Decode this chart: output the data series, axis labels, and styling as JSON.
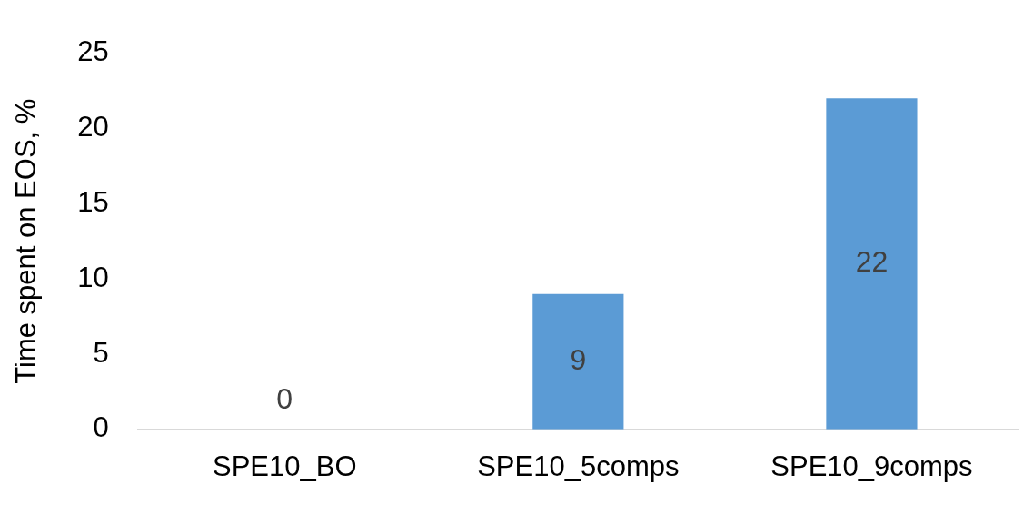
{
  "chart_data": {
    "type": "bar",
    "ylabel": "Time spent on EOS, %",
    "categories": [
      "SPE10_BO",
      "SPE10_5comps",
      "SPE10_9comps"
    ],
    "values": [
      0,
      9,
      22
    ],
    "color": "#5b9bd5",
    "ylim": [
      0,
      25
    ],
    "yticks": [
      0,
      5,
      10,
      15,
      20,
      25
    ],
    "grid": false,
    "data_labels": true
  }
}
